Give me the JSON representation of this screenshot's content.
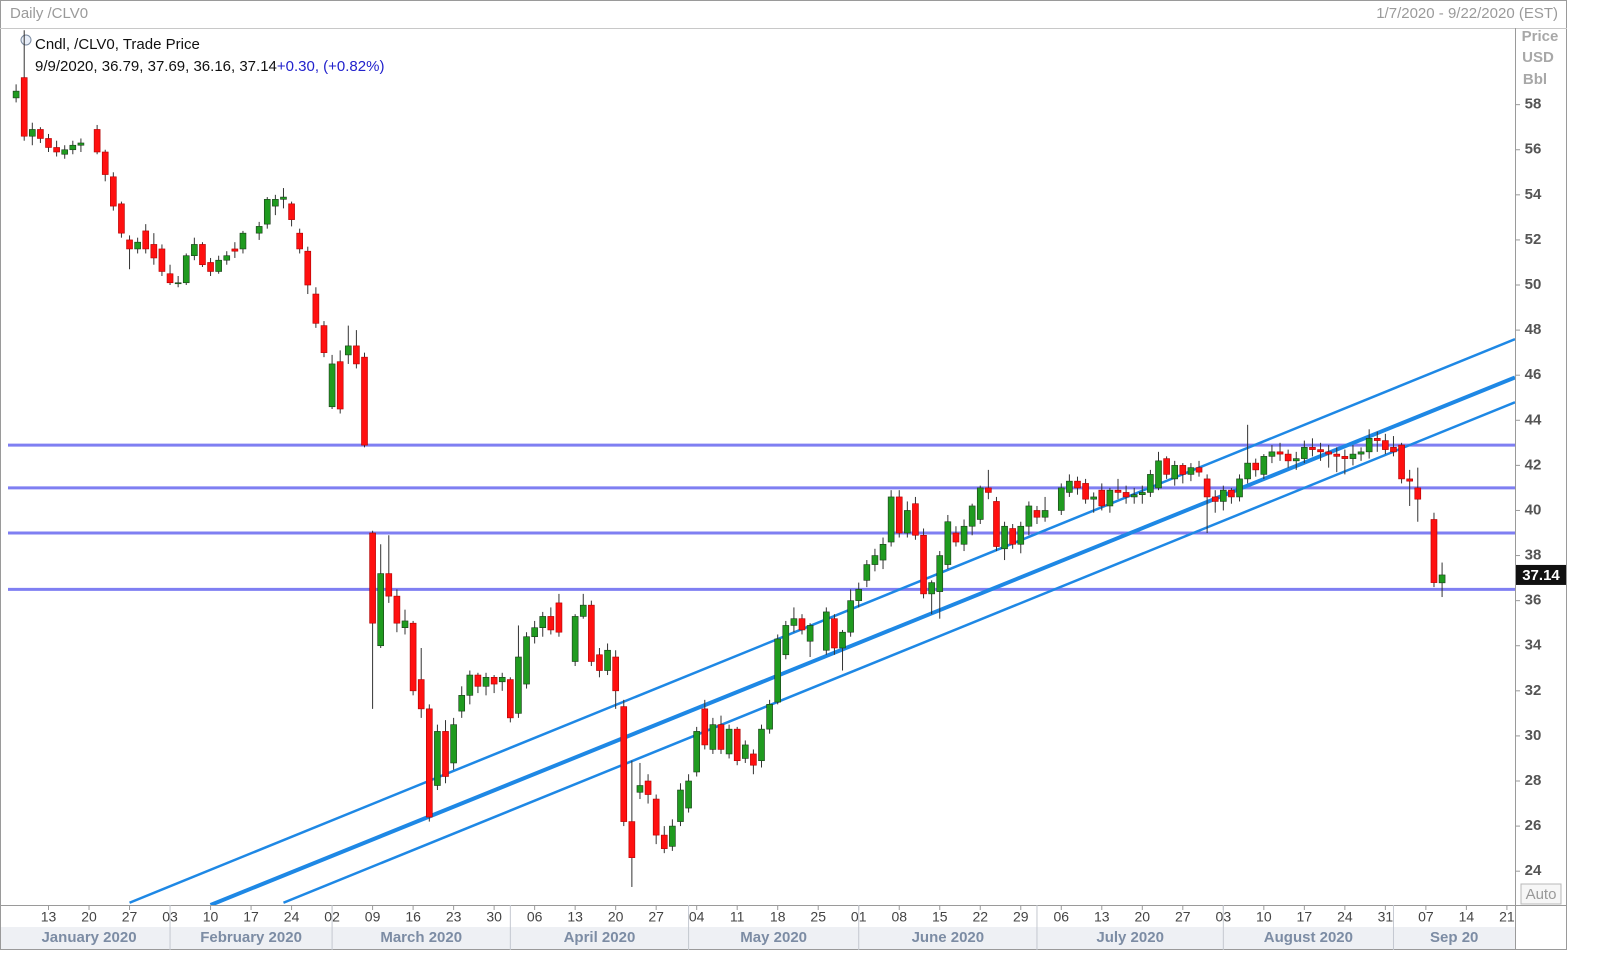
{
  "chart_data": {
    "type": "candlestick",
    "title": "Daily /CLV0",
    "date_range": "1/7/2020 - 9/22/2020 (EST)",
    "legend_title": "Cndl, /CLV0, Trade Price",
    "legend_values": "9/9/2020, 36.79, 37.69, 36.16, 37.14",
    "legend_change": "+0.30, (+0.82%)",
    "y_label": [
      "Price",
      "USD",
      "Bbl"
    ],
    "auto_button": "Auto",
    "up_color": "#1f9b1f",
    "down_color": "#ff1010",
    "ylim": [
      22.5,
      61.4
    ],
    "yticks": [
      24,
      26,
      28,
      30,
      32,
      34,
      36,
      38,
      40,
      42,
      44,
      46,
      48,
      50,
      52,
      54,
      56,
      58
    ],
    "xlim": [
      "2020-01-06",
      "2020-09-22"
    ],
    "xticks": [
      {
        "value": "2020-01-13",
        "label": "13"
      },
      {
        "value": "2020-01-20",
        "label": "20"
      },
      {
        "value": "2020-01-27",
        "label": "27"
      },
      {
        "value": "2020-02-03",
        "label": "03"
      },
      {
        "value": "2020-02-10",
        "label": "10"
      },
      {
        "value": "2020-02-17",
        "label": "17"
      },
      {
        "value": "2020-02-24",
        "label": "24"
      },
      {
        "value": "2020-03-02",
        "label": "02"
      },
      {
        "value": "2020-03-09",
        "label": "09"
      },
      {
        "value": "2020-03-16",
        "label": "16"
      },
      {
        "value": "2020-03-23",
        "label": "23"
      },
      {
        "value": "2020-03-30",
        "label": "30"
      },
      {
        "value": "2020-04-06",
        "label": "06"
      },
      {
        "value": "2020-04-13",
        "label": "13"
      },
      {
        "value": "2020-04-20",
        "label": "20"
      },
      {
        "value": "2020-04-27",
        "label": "27"
      },
      {
        "value": "2020-05-04",
        "label": "04"
      },
      {
        "value": "2020-05-11",
        "label": "11"
      },
      {
        "value": "2020-05-18",
        "label": "18"
      },
      {
        "value": "2020-05-25",
        "label": "25"
      },
      {
        "value": "2020-06-01",
        "label": "01"
      },
      {
        "value": "2020-06-08",
        "label": "08"
      },
      {
        "value": "2020-06-15",
        "label": "15"
      },
      {
        "value": "2020-06-22",
        "label": "22"
      },
      {
        "value": "2020-06-29",
        "label": "29"
      },
      {
        "value": "2020-07-06",
        "label": "06"
      },
      {
        "value": "2020-07-13",
        "label": "13"
      },
      {
        "value": "2020-07-20",
        "label": "20"
      },
      {
        "value": "2020-07-27",
        "label": "27"
      },
      {
        "value": "2020-08-03",
        "label": "03"
      },
      {
        "value": "2020-08-10",
        "label": "10"
      },
      {
        "value": "2020-08-17",
        "label": "17"
      },
      {
        "value": "2020-08-24",
        "label": "24"
      },
      {
        "value": "2020-08-31",
        "label": "31"
      },
      {
        "value": "2020-09-07",
        "label": "07"
      },
      {
        "value": "2020-09-14",
        "label": "14"
      },
      {
        "value": "2020-09-21",
        "label": "21"
      }
    ],
    "month_labels": [
      {
        "value": "2020-01-01",
        "label": "January 2020"
      },
      {
        "value": "2020-02-01",
        "label": "February 2020"
      },
      {
        "value": "2020-03-01",
        "label": "March 2020"
      },
      {
        "value": "2020-04-01",
        "label": "April 2020"
      },
      {
        "value": "2020-05-01",
        "label": "May 2020"
      },
      {
        "value": "2020-06-01",
        "label": "June 2020"
      },
      {
        "value": "2020-07-01",
        "label": "July 2020"
      },
      {
        "value": "2020-08-01",
        "label": "August 2020"
      },
      {
        "value": "2020-09-01",
        "label": "Sep 20"
      }
    ],
    "hlines": {
      "color": "#7f7ff2",
      "values": [
        42.9,
        41.0,
        39.0,
        36.5
      ]
    },
    "trendlines": {
      "color": "#1e88e5",
      "lines": [
        {
          "x": [
            "2020-01-27",
            "2020-09-22"
          ],
          "y": [
            22.6,
            47.6
          ]
        },
        {
          "x": [
            "2020-02-10",
            "2020-09-22"
          ],
          "y": [
            22.5,
            45.9
          ]
        },
        {
          "x": [
            "2020-02-21",
            "2020-09-22"
          ],
          "y": [
            22.6,
            44.8
          ]
        }
      ]
    },
    "x": [
      "2020-01-07",
      "2020-01-08",
      "2020-01-09",
      "2020-01-10",
      "2020-01-13",
      "2020-01-14",
      "2020-01-15",
      "2020-01-16",
      "2020-01-17",
      "2020-01-21",
      "2020-01-22",
      "2020-01-23",
      "2020-01-24",
      "2020-01-27",
      "2020-01-28",
      "2020-01-29",
      "2020-01-30",
      "2020-01-31",
      "2020-02-03",
      "2020-02-04",
      "2020-02-05",
      "2020-02-06",
      "2020-02-07",
      "2020-02-10",
      "2020-02-11",
      "2020-02-12",
      "2020-02-13",
      "2020-02-14",
      "2020-02-18",
      "2020-02-19",
      "2020-02-20",
      "2020-02-21",
      "2020-02-24",
      "2020-02-25",
      "2020-02-26",
      "2020-02-27",
      "2020-02-28",
      "2020-03-02",
      "2020-03-03",
      "2020-03-04",
      "2020-03-05",
      "2020-03-06",
      "2020-03-09",
      "2020-03-10",
      "2020-03-11",
      "2020-03-12",
      "2020-03-13",
      "2020-03-16",
      "2020-03-17",
      "2020-03-18",
      "2020-03-19",
      "2020-03-20",
      "2020-03-23",
      "2020-03-24",
      "2020-03-25",
      "2020-03-26",
      "2020-03-27",
      "2020-03-30",
      "2020-03-31",
      "2020-04-01",
      "2020-04-02",
      "2020-04-03",
      "2020-04-06",
      "2020-04-07",
      "2020-04-08",
      "2020-04-09",
      "2020-04-13",
      "2020-04-14",
      "2020-04-15",
      "2020-04-16",
      "2020-04-17",
      "2020-04-20",
      "2020-04-21",
      "2020-04-22",
      "2020-04-23",
      "2020-04-24",
      "2020-04-27",
      "2020-04-28",
      "2020-04-29",
      "2020-04-30",
      "2020-05-01",
      "2020-05-04",
      "2020-05-05",
      "2020-05-06",
      "2020-05-07",
      "2020-05-08",
      "2020-05-11",
      "2020-05-12",
      "2020-05-13",
      "2020-05-14",
      "2020-05-15",
      "2020-05-18",
      "2020-05-19",
      "2020-05-20",
      "2020-05-21",
      "2020-05-22",
      "2020-05-26",
      "2020-05-27",
      "2020-05-28",
      "2020-05-29",
      "2020-06-01",
      "2020-06-02",
      "2020-06-03",
      "2020-06-04",
      "2020-06-05",
      "2020-06-08",
      "2020-06-09",
      "2020-06-10",
      "2020-06-11",
      "2020-06-12",
      "2020-06-15",
      "2020-06-16",
      "2020-06-17",
      "2020-06-18",
      "2020-06-19",
      "2020-06-22",
      "2020-06-23",
      "2020-06-24",
      "2020-06-25",
      "2020-06-26",
      "2020-06-29",
      "2020-06-30",
      "2020-07-01",
      "2020-07-02",
      "2020-07-06",
      "2020-07-07",
      "2020-07-08",
      "2020-07-09",
      "2020-07-10",
      "2020-07-13",
      "2020-07-14",
      "2020-07-15",
      "2020-07-16",
      "2020-07-17",
      "2020-07-20",
      "2020-07-21",
      "2020-07-22",
      "2020-07-23",
      "2020-07-24",
      "2020-07-27",
      "2020-07-28",
      "2020-07-29",
      "2020-07-30",
      "2020-07-31",
      "2020-08-03",
      "2020-08-04",
      "2020-08-05",
      "2020-08-06",
      "2020-08-07",
      "2020-08-10",
      "2020-08-11",
      "2020-08-12",
      "2020-08-13",
      "2020-08-14",
      "2020-08-17",
      "2020-08-18",
      "2020-08-19",
      "2020-08-20",
      "2020-08-21",
      "2020-08-24",
      "2020-08-25",
      "2020-08-26",
      "2020-08-27",
      "2020-08-28",
      "2020-08-31",
      "2020-09-01",
      "2020-09-02",
      "2020-09-03",
      "2020-09-04",
      "2020-09-08",
      "2020-09-09"
    ],
    "open": [
      58.3,
      59.2,
      56.6,
      56.9,
      56.5,
      56.1,
      55.8,
      56.0,
      56.2,
      56.9,
      55.9,
      54.8,
      53.6,
      52.0,
      51.6,
      52.4,
      51.8,
      51.6,
      50.5,
      50.1,
      50.1,
      51.3,
      51.8,
      51.0,
      50.6,
      51.1,
      51.6,
      51.6,
      52.3,
      52.7,
      53.5,
      53.8,
      53.6,
      52.3,
      51.5,
      49.6,
      48.2,
      44.6,
      46.6,
      46.9,
      47.3,
      46.8,
      39.0,
      34.0,
      37.2,
      36.2,
      34.8,
      35.0,
      32.5,
      31.2,
      27.8,
      30.2,
      28.8,
      31.1,
      31.8,
      32.7,
      32.2,
      32.6,
      32.4,
      32.5,
      31.0,
      32.3,
      34.4,
      34.8,
      35.3,
      35.9,
      33.3,
      35.3,
      35.8,
      33.6,
      32.9,
      33.5,
      31.3,
      26.2,
      27.5,
      28.0,
      27.2,
      25.6,
      25.1,
      26.2,
      26.8,
      28.4,
      31.2,
      29.4,
      30.5,
      29.2,
      30.3,
      29.0,
      29.2,
      28.9,
      30.3,
      31.5,
      33.6,
      34.9,
      35.2,
      34.2,
      33.8,
      35.2,
      33.9,
      34.6,
      36.0,
      36.9,
      37.6,
      37.8,
      38.6,
      40.6,
      39.0,
      40.3,
      38.9,
      36.3,
      36.4,
      37.6,
      39.0,
      38.5,
      39.3,
      39.6,
      41.0,
      40.4,
      38.3,
      39.2,
      38.5,
      39.3,
      40.0,
      39.7,
      40.0,
      40.8,
      41.3,
      41.2,
      40.5,
      40.9,
      40.2,
      40.9,
      40.8,
      40.6,
      40.7,
      40.8,
      41.0,
      42.3,
      41.4,
      42.0,
      41.6,
      41.9,
      41.4,
      40.6,
      40.4,
      40.9,
      40.6,
      41.4,
      42.1,
      41.6,
      42.4,
      42.6,
      42.5,
      42.2,
      42.3,
      42.8,
      42.7,
      42.6,
      42.5,
      42.4,
      42.3,
      42.5,
      42.6,
      43.2,
      43.1,
      42.8,
      42.9,
      41.4,
      41.0,
      39.6,
      36.79
    ],
    "high": [
      58.9,
      61.3,
      57.2,
      57.0,
      56.7,
      56.4,
      56.2,
      56.4,
      56.5,
      57.1,
      56.0,
      55.0,
      53.7,
      52.2,
      52.1,
      52.7,
      52.3,
      51.8,
      50.9,
      50.4,
      51.4,
      52.1,
      51.9,
      51.2,
      51.3,
      51.5,
      51.9,
      52.4,
      52.8,
      53.9,
      54.0,
      54.3,
      53.7,
      52.5,
      51.7,
      49.9,
      48.4,
      46.9,
      47.1,
      48.2,
      48.0,
      47.0,
      39.1,
      38.5,
      38.9,
      36.5,
      35.6,
      35.1,
      33.9,
      31.4,
      30.5,
      30.7,
      30.8,
      32.2,
      32.9,
      32.8,
      32.8,
      32.7,
      32.8,
      32.6,
      34.9,
      34.6,
      35.1,
      35.5,
      35.7,
      36.3,
      35.4,
      36.3,
      36.0,
      33.9,
      34.1,
      33.8,
      31.6,
      28.9,
      28.8,
      28.3,
      27.4,
      26.0,
      26.3,
      27.9,
      28.3,
      30.4,
      31.6,
      30.8,
      30.9,
      30.5,
      30.4,
      29.8,
      29.4,
      30.5,
      31.6,
      34.5,
      35.1,
      35.7,
      35.4,
      35.0,
      35.7,
      35.4,
      34.7,
      36.5,
      36.8,
      37.8,
      38.3,
      38.8,
      40.9,
      40.9,
      40.4,
      40.6,
      39.2,
      36.9,
      38.2,
      39.8,
      39.3,
      39.6,
      40.3,
      41.1,
      41.8,
      40.6,
      39.5,
      39.4,
      39.5,
      40.4,
      40.2,
      40.6,
      41.2,
      41.6,
      41.5,
      41.4,
      40.8,
      41.2,
      41.0,
      41.4,
      41.1,
      41.0,
      41.1,
      41.8,
      42.6,
      42.4,
      42.2,
      42.1,
      42.1,
      42.2,
      41.6,
      40.9,
      41.1,
      41.0,
      41.6,
      43.8,
      42.3,
      42.5,
      42.9,
      43.0,
      42.7,
      42.6,
      43.1,
      43.2,
      43.0,
      42.9,
      42.8,
      42.7,
      42.9,
      42.8,
      43.6,
      43.5,
      43.4,
      43.3,
      43.0,
      41.8,
      41.9,
      39.9,
      37.69
    ],
    "low": [
      58.1,
      56.4,
      56.2,
      56.3,
      55.9,
      55.7,
      55.6,
      55.8,
      55.9,
      55.8,
      54.6,
      53.3,
      52.1,
      50.7,
      51.4,
      51.4,
      50.9,
      50.4,
      50.0,
      49.9,
      50.0,
      51.1,
      50.8,
      50.4,
      50.5,
      50.9,
      51.2,
      51.4,
      52.0,
      52.5,
      53.1,
      53.4,
      52.6,
      51.4,
      49.6,
      48.1,
      46.8,
      44.5,
      44.3,
      46.5,
      46.3,
      42.8,
      31.2,
      33.9,
      35.9,
      34.6,
      34.5,
      31.8,
      30.8,
      26.2,
      27.6,
      27.9,
      28.5,
      30.8,
      31.4,
      31.9,
      31.8,
      31.9,
      32.0,
      30.6,
      30.8,
      32.1,
      34.1,
      34.4,
      34.5,
      34.4,
      33.1,
      35.2,
      33.1,
      32.6,
      32.7,
      31.2,
      26.0,
      23.3,
      27.2,
      27.0,
      25.2,
      24.8,
      24.9,
      26.0,
      26.6,
      28.2,
      29.4,
      29.2,
      29.2,
      29.0,
      28.7,
      28.8,
      28.3,
      28.6,
      30.1,
      31.4,
      33.4,
      34.6,
      34.5,
      33.5,
      33.6,
      33.6,
      32.9,
      34.4,
      35.7,
      36.6,
      37.3,
      37.4,
      38.4,
      38.8,
      38.8,
      38.7,
      36.1,
      35.4,
      35.2,
      37.4,
      38.4,
      38.2,
      38.9,
      39.4,
      40.5,
      38.2,
      37.8,
      38.3,
      38.1,
      38.9,
      39.4,
      39.5,
      39.8,
      40.6,
      40.7,
      40.3,
      39.9,
      40.0,
      39.9,
      40.5,
      40.3,
      40.3,
      40.3,
      40.6,
      40.9,
      41.4,
      41.1,
      41.2,
      41.3,
      41.5,
      39.0,
      39.9,
      40.0,
      40.3,
      40.4,
      41.2,
      41.5,
      41.4,
      42.1,
      42.2,
      41.9,
      41.8,
      42.1,
      42.4,
      42.2,
      41.9,
      41.7,
      41.6,
      42.0,
      42.2,
      42.3,
      42.6,
      42.5,
      42.4,
      41.2,
      40.2,
      39.5,
      36.6,
      36.16
    ],
    "close": [
      58.6,
      56.6,
      56.9,
      56.5,
      56.1,
      55.9,
      56.0,
      56.2,
      56.3,
      55.9,
      54.9,
      53.5,
      52.3,
      51.6,
      51.9,
      51.6,
      51.2,
      50.6,
      50.1,
      50.1,
      51.3,
      51.8,
      50.9,
      50.6,
      51.1,
      51.3,
      51.5,
      52.3,
      52.6,
      53.8,
      53.8,
      53.9,
      52.9,
      51.6,
      50.0,
      48.3,
      47.0,
      46.5,
      44.5,
      47.3,
      46.5,
      42.9,
      35.0,
      37.2,
      36.2,
      35.0,
      35.1,
      32.0,
      31.2,
      26.4,
      30.2,
      28.2,
      30.5,
      31.8,
      32.7,
      32.2,
      32.6,
      32.3,
      32.6,
      30.8,
      33.5,
      34.4,
      34.8,
      35.3,
      34.7,
      34.6,
      35.3,
      35.8,
      33.3,
      32.9,
      33.8,
      32.0,
      26.2,
      24.6,
      27.8,
      27.4,
      25.6,
      25.0,
      26.0,
      27.6,
      28.0,
      30.2,
      29.6,
      30.5,
      29.4,
      30.3,
      28.9,
      29.6,
      28.7,
      30.3,
      31.4,
      34.3,
      34.9,
      35.2,
      34.7,
      34.9,
      35.5,
      33.9,
      34.6,
      36.0,
      36.5,
      37.6,
      38.0,
      38.5,
      40.6,
      39.0,
      40.0,
      38.9,
      36.3,
      36.8,
      38.0,
      39.5,
      38.6,
      39.3,
      40.2,
      41.0,
      40.8,
      38.4,
      39.3,
      38.5,
      39.3,
      40.2,
      39.7,
      40.0,
      41.0,
      41.3,
      41.0,
      40.5,
      40.6,
      40.2,
      40.9,
      40.8,
      40.6,
      40.7,
      40.8,
      41.6,
      42.2,
      41.6,
      42.0,
      41.6,
      41.9,
      41.7,
      40.6,
      40.4,
      40.9,
      40.6,
      41.4,
      42.1,
      41.8,
      42.4,
      42.6,
      42.5,
      42.2,
      42.3,
      42.8,
      42.7,
      42.6,
      42.5,
      42.4,
      42.3,
      42.5,
      42.6,
      43.2,
      43.1,
      42.7,
      42.6,
      41.4,
      41.3,
      40.5,
      36.8,
      37.14
    ]
  }
}
